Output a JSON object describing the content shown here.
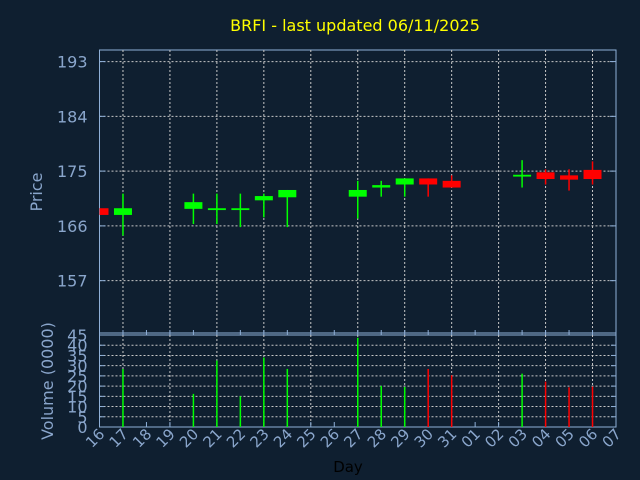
{
  "chart_data": [
    {
      "type": "candlestick",
      "title": "BRFI - last updated 06/11/2025",
      "ylabel": "Price",
      "ylim": [
        148.4,
        194.9
      ],
      "yticks": [
        "157",
        "166",
        "175",
        "184",
        "193"
      ],
      "grid": true,
      "up_color": "#00ff00",
      "down_color": "#ff0000",
      "categories": [
        "16",
        "17",
        "18",
        "19",
        "20",
        "21",
        "22",
        "23",
        "24",
        "25",
        "26",
        "27",
        "28",
        "29",
        "30",
        "31",
        "01",
        "02",
        "03",
        "04",
        "05",
        "06",
        "07"
      ],
      "candles": [
        {
          "day": "16",
          "open": 168.9,
          "high": 168.9,
          "low": 167.8,
          "close": 167.8
        },
        {
          "day": "17",
          "open": 167.8,
          "high": 171.3,
          "low": 164.4,
          "close": 168.9
        },
        {
          "day": "20",
          "open": 168.8,
          "high": 171.3,
          "low": 166.3,
          "close": 169.9
        },
        {
          "day": "21",
          "open": 168.6,
          "high": 171.3,
          "low": 166.3,
          "close": 168.9
        },
        {
          "day": "22",
          "open": 168.6,
          "high": 171.3,
          "low": 165.8,
          "close": 168.9
        },
        {
          "day": "23",
          "open": 170.2,
          "high": 171.3,
          "low": 167.4,
          "close": 170.9
        },
        {
          "day": "24",
          "open": 170.7,
          "high": 171.9,
          "low": 165.8,
          "close": 171.9
        },
        {
          "day": "27",
          "open": 170.8,
          "high": 173.4,
          "low": 167.2,
          "close": 171.9
        },
        {
          "day": "28",
          "open": 172.3,
          "high": 173.4,
          "low": 170.8,
          "close": 172.7
        },
        {
          "day": "29",
          "open": 172.8,
          "high": 173.8,
          "low": 170.8,
          "close": 173.8
        },
        {
          "day": "30",
          "open": 173.8,
          "high": 173.8,
          "low": 170.8,
          "close": 172.8
        },
        {
          "day": "31",
          "open": 173.4,
          "high": 174.3,
          "low": 172.3,
          "close": 172.3
        },
        {
          "day": "03",
          "open": 174.1,
          "high": 176.8,
          "low": 172.3,
          "close": 174.4
        },
        {
          "day": "04",
          "open": 174.8,
          "high": 175.3,
          "low": 172.8,
          "close": 173.7
        },
        {
          "day": "05",
          "open": 174.3,
          "high": 175.3,
          "low": 171.8,
          "close": 173.6
        },
        {
          "day": "06",
          "open": 175.2,
          "high": 176.6,
          "low": 172.8,
          "close": 173.7
        }
      ]
    },
    {
      "type": "bar",
      "ylabel": "Volume (0000)",
      "xlabel": "Day",
      "ylim": [
        0,
        45
      ],
      "yticks": [
        "0",
        "5",
        "10",
        "15",
        "20",
        "25",
        "30",
        "35",
        "40",
        "45"
      ],
      "grid": true,
      "categories": [
        "16",
        "17",
        "18",
        "19",
        "20",
        "21",
        "22",
        "23",
        "24",
        "25",
        "26",
        "27",
        "28",
        "29",
        "30",
        "31",
        "01",
        "02",
        "03",
        "04",
        "05",
        "06",
        "07"
      ],
      "bars": [
        {
          "day": "17",
          "value": 28.4,
          "color": "#00ff00"
        },
        {
          "day": "20",
          "value": 16.2,
          "color": "#00ff00"
        },
        {
          "day": "21",
          "value": 32.5,
          "color": "#00ff00"
        },
        {
          "day": "22",
          "value": 15.0,
          "color": "#00ff00"
        },
        {
          "day": "23",
          "value": 34.0,
          "color": "#00ff00"
        },
        {
          "day": "24",
          "value": 28.4,
          "color": "#00ff00"
        },
        {
          "day": "27",
          "value": 43.6,
          "color": "#00ff00"
        },
        {
          "day": "28",
          "value": 20.1,
          "color": "#00ff00"
        },
        {
          "day": "29",
          "value": 19.6,
          "color": "#00ff00"
        },
        {
          "day": "30",
          "value": 28.4,
          "color": "#ff0000"
        },
        {
          "day": "31",
          "value": 25.3,
          "color": "#ff0000"
        },
        {
          "day": "03",
          "value": 26.1,
          "color": "#00ff00"
        },
        {
          "day": "04",
          "value": 22.2,
          "color": "#ff0000"
        },
        {
          "day": "05",
          "value": 19.4,
          "color": "#ff0000"
        },
        {
          "day": "06",
          "value": 19.8,
          "color": "#ff0000"
        }
      ]
    }
  ],
  "colors": {
    "background": "#0f1f30",
    "title": "#ffff00",
    "axis": "#8fb0d8",
    "grid": "#c8c8c8",
    "tick_text": "#8aa6cc",
    "xlabel": "#000000"
  }
}
